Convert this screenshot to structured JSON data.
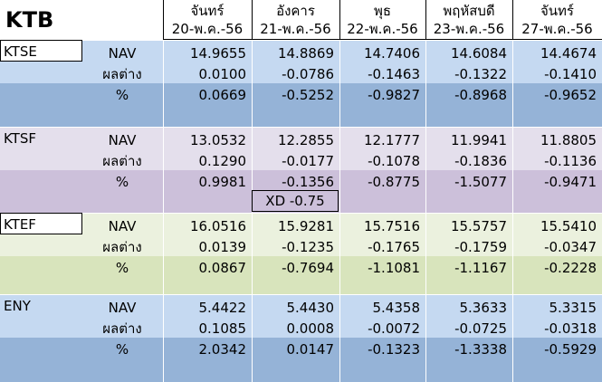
{
  "title": "KTB",
  "columns": [
    {
      "day": "จันทร์",
      "date": "20-พ.ค.-56"
    },
    {
      "day": "อังคาร",
      "date": "21-พ.ค.-56"
    },
    {
      "day": "พุธ",
      "date": "22-พ.ค.-56"
    },
    {
      "day": "พฤหัสบดี",
      "date": "23-พ.ค.-56"
    },
    {
      "day": "จันทร์",
      "date": "27-พ.ค.-56"
    }
  ],
  "groups": [
    {
      "fund": "KTSE",
      "rows": [
        {
          "label": "NAV",
          "values": [
            "14.9655",
            "14.8869",
            "14.7406",
            "14.6084",
            "14.4674"
          ]
        },
        {
          "label": "ผลต่าง",
          "values": [
            "0.0100",
            "-0.0786",
            "-0.1463",
            "-0.1322",
            "-0.1410"
          ]
        },
        {
          "label": "%",
          "values": [
            "0.0669",
            "-0.5252",
            "-0.9827",
            "-0.8968",
            "-0.9652"
          ]
        }
      ]
    },
    {
      "fund": "KTSF",
      "rows": [
        {
          "label": "NAV",
          "values": [
            "13.0532",
            "12.2855",
            "12.1777",
            "11.9941",
            "11.8805"
          ]
        },
        {
          "label": "ผลต่าง",
          "values": [
            "0.1290",
            "-0.0177",
            "-0.1078",
            "-0.1836",
            "-0.1136"
          ]
        },
        {
          "label": "%",
          "values": [
            "0.9981",
            "-0.1356",
            "-0.8775",
            "-1.5077",
            "-0.9471"
          ]
        }
      ]
    },
    {
      "fund": "KTEF",
      "rows": [
        {
          "label": "NAV",
          "values": [
            "16.0516",
            "15.9281",
            "15.7516",
            "15.5757",
            "15.5410"
          ]
        },
        {
          "label": "ผลต่าง",
          "values": [
            "0.0139",
            "-0.1235",
            "-0.1765",
            "-0.1759",
            "-0.0347"
          ]
        },
        {
          "label": "%",
          "values": [
            "0.0867",
            "-0.7694",
            "-1.1081",
            "-1.1167",
            "-0.2228"
          ]
        }
      ]
    },
    {
      "fund": "ENY",
      "rows": [
        {
          "label": "NAV",
          "values": [
            "5.4422",
            "5.4430",
            "5.4358",
            "5.3633",
            "5.3315"
          ]
        },
        {
          "label": "ผลต่าง",
          "values": [
            "0.1085",
            "0.0008",
            "-0.0072",
            "-0.0725",
            "-0.0318"
          ]
        },
        {
          "label": "%",
          "values": [
            "2.0342",
            "0.0147",
            "-0.1323",
            "-1.3338",
            "-0.5929"
          ]
        }
      ]
    }
  ],
  "note": "XD -0.75"
}
